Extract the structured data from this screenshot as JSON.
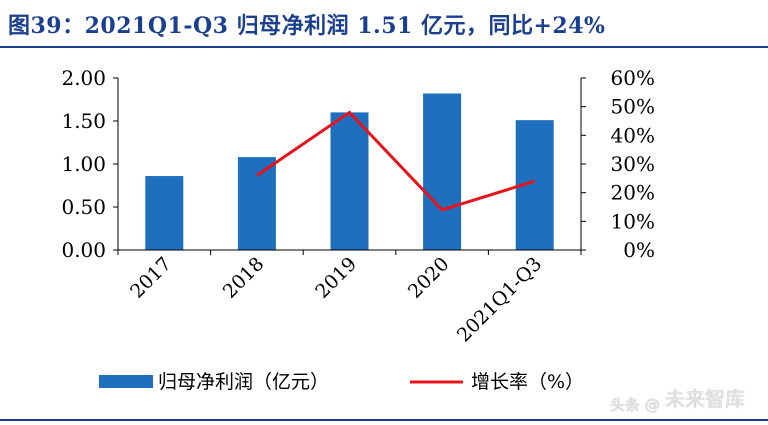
{
  "figure": {
    "title": "图39：2021Q1-Q3 归母净利润 1.51 亿元，同比+24%"
  },
  "chart_data": {
    "type": "bar",
    "categories": [
      "2017",
      "2018",
      "2019",
      "2020",
      "2021Q1-Q3"
    ],
    "series": [
      {
        "name": "归母净利润（亿元）",
        "type": "bar",
        "axis": "left",
        "values": [
          0.86,
          1.08,
          1.6,
          1.82,
          1.51
        ],
        "color": "#1f6fbf"
      },
      {
        "name": "增长率（%）",
        "type": "line",
        "axis": "right",
        "values": [
          null,
          0.26,
          0.48,
          0.14,
          0.24
        ],
        "color": "#e8141c"
      }
    ],
    "y_left": {
      "range": [
        0,
        2.0
      ],
      "ticks": [
        "0.00",
        "0.50",
        "1.00",
        "1.50",
        "2.00"
      ]
    },
    "y_right": {
      "range": [
        0,
        0.6
      ],
      "ticks": [
        "0%",
        "10%",
        "20%",
        "30%",
        "40%",
        "50%",
        "60%"
      ]
    },
    "grid": false,
    "legend_position": "bottom"
  },
  "watermark": {
    "main": "未来智库",
    "small": "头条 @"
  }
}
